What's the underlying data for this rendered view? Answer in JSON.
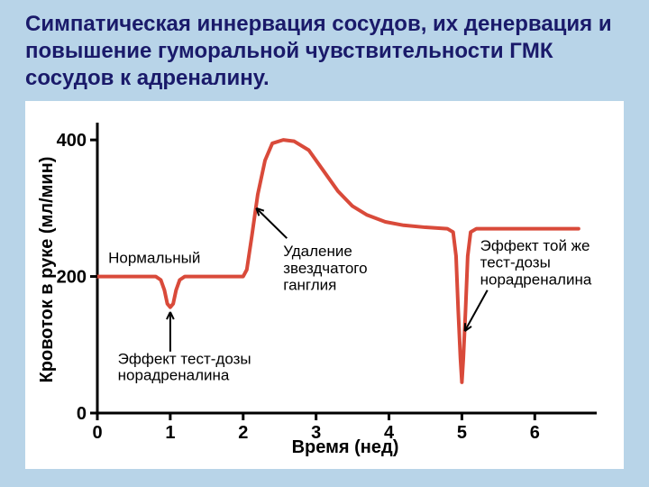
{
  "title": "Симпатическая иннервация сосудов, их денервация и повышение гуморальной чувствительности ГМК сосудов к адреналину.",
  "chart": {
    "type": "line",
    "background_color": "#ffffff",
    "page_background": "#b8d4e8",
    "axis_color": "#000000",
    "axis_width": 3,
    "line_color": "#d94a3a",
    "line_width": 4,
    "arrow_color": "#000000",
    "arrow_width": 2,
    "xlim": [
      0,
      6.8
    ],
    "ylim": [
      0,
      420
    ],
    "xticks": [
      0,
      1,
      2,
      3,
      4,
      5,
      6
    ],
    "yticks": [
      0,
      200,
      400
    ],
    "xlabel": "Время (нед)",
    "ylabel": "Кровоток в руке (мл/мин)",
    "tick_fontsize": 20,
    "label_fontsize": 20,
    "annot_fontsize": 17,
    "points": [
      [
        0.0,
        200
      ],
      [
        0.8,
        200
      ],
      [
        0.87,
        195
      ],
      [
        0.92,
        180
      ],
      [
        0.96,
        160
      ],
      [
        1.0,
        155
      ],
      [
        1.04,
        160
      ],
      [
        1.08,
        180
      ],
      [
        1.13,
        195
      ],
      [
        1.2,
        200
      ],
      [
        2.0,
        200
      ],
      [
        2.05,
        210
      ],
      [
        2.12,
        260
      ],
      [
        2.2,
        320
      ],
      [
        2.3,
        370
      ],
      [
        2.4,
        395
      ],
      [
        2.55,
        400
      ],
      [
        2.7,
        398
      ],
      [
        2.9,
        385
      ],
      [
        3.1,
        355
      ],
      [
        3.3,
        325
      ],
      [
        3.5,
        303
      ],
      [
        3.7,
        290
      ],
      [
        3.95,
        280
      ],
      [
        4.2,
        275
      ],
      [
        4.5,
        272
      ],
      [
        4.8,
        270
      ],
      [
        4.88,
        265
      ],
      [
        4.92,
        230
      ],
      [
        4.95,
        150
      ],
      [
        4.98,
        80
      ],
      [
        5.0,
        45
      ],
      [
        5.02,
        80
      ],
      [
        5.05,
        150
      ],
      [
        5.08,
        230
      ],
      [
        5.12,
        265
      ],
      [
        5.2,
        270
      ],
      [
        5.6,
        270
      ],
      [
        6.2,
        270
      ],
      [
        6.6,
        270
      ]
    ],
    "annotations": {
      "normal": {
        "label": "Нормальный"
      },
      "test_dose": {
        "line1": "Эффект тест-дозы",
        "line2": "норадреналина"
      },
      "ganglion": {
        "line1": "Удаление",
        "line2": "звездчатого",
        "line3": "ганглия"
      },
      "same_dose": {
        "line1": "Эффект той же",
        "line2": "тест-дозы",
        "line3": "норадреналина"
      }
    }
  }
}
